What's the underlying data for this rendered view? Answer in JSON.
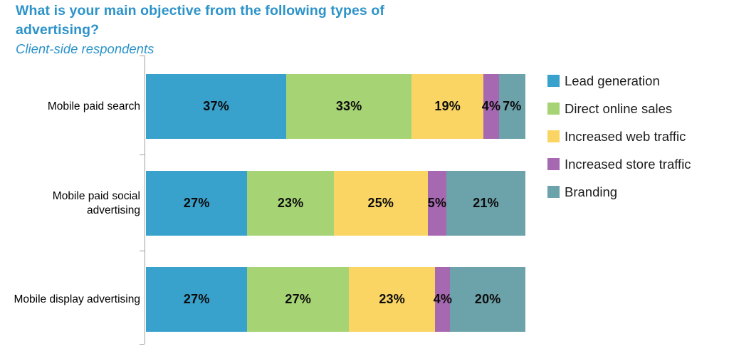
{
  "header": {
    "title": "What is your main objective from the following types of\nadvertising?",
    "subtitle": "Client-side respondents",
    "title_color": "#2C93C9"
  },
  "chart_data": {
    "type": "bar",
    "orientation": "horizontal",
    "stacked": true,
    "grid": false,
    "legend_position": "right",
    "value_suffix": "%",
    "categories": [
      "Mobile paid search",
      "Mobile paid social advertising",
      "Mobile display advertising"
    ],
    "series": [
      {
        "name": "Lead generation",
        "color": "#38A1CC",
        "values": [
          37,
          27,
          27
        ]
      },
      {
        "name": "Direct online sales",
        "color": "#A6D374",
        "values": [
          33,
          23,
          27
        ]
      },
      {
        "name": "Increased web traffic",
        "color": "#FAD564",
        "values": [
          19,
          25,
          23
        ]
      },
      {
        "name": "Increased store traffic",
        "color": "#A768B2",
        "values": [
          4,
          5,
          4
        ]
      },
      {
        "name": "Branding",
        "color": "#6CA2AA",
        "values": [
          7,
          21,
          20
        ]
      }
    ],
    "axis": {
      "color": "#a0a0a0"
    }
  }
}
